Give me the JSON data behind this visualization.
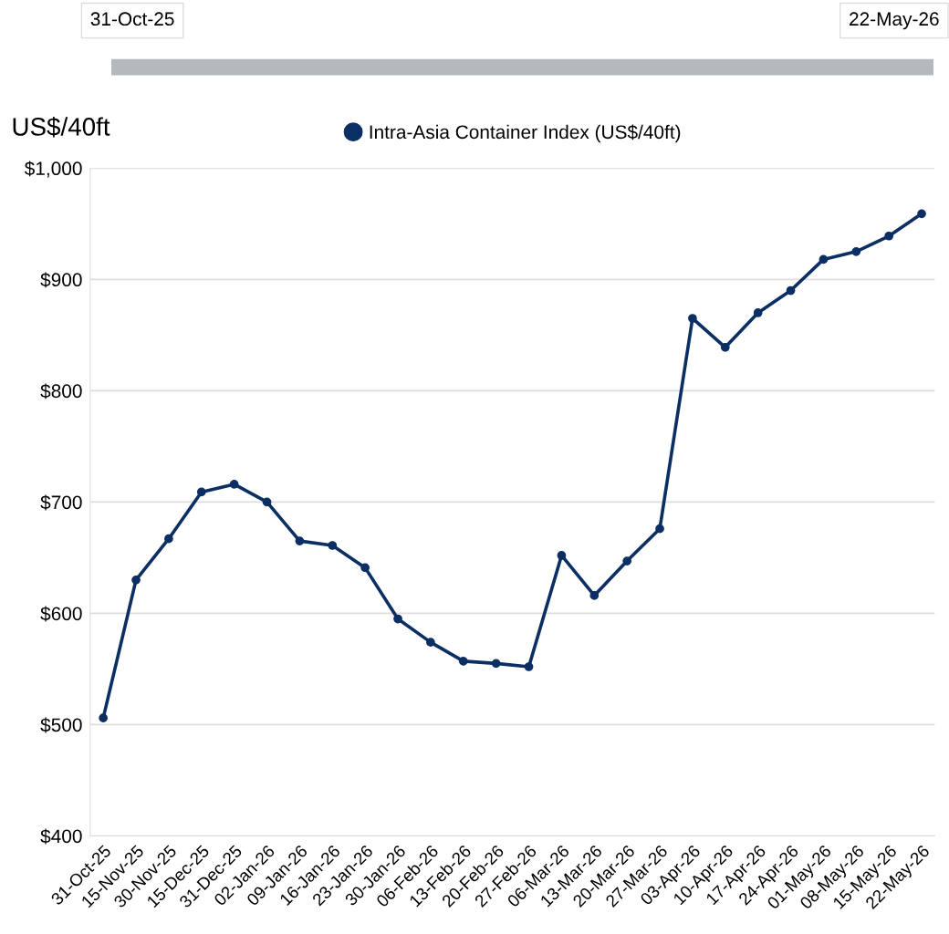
{
  "chart_data": {
    "type": "line",
    "ylabel": "US$/40ft",
    "categories": [
      "31-Oct-25",
      "15-Nov-25",
      "30-Nov-25",
      "15-Dec-25",
      "31-Dec-25",
      "02-Jan-26",
      "09-Jan-26",
      "16-Jan-26",
      "23-Jan-26",
      "30-Jan-26",
      "06-Feb-26",
      "13-Feb-26",
      "20-Feb-26",
      "27-Feb-26",
      "06-Mar-26",
      "13-Mar-26",
      "20-Mar-26",
      "27-Mar-26",
      "03-Apr-26",
      "10-Apr-26",
      "17-Apr-26",
      "24-Apr-26",
      "01-May-26",
      "08-May-26",
      "15-May-26",
      "22-May-26"
    ],
    "series": [
      {
        "name": "Intra-Asia Container Index (US$/40ft)",
        "color": "#0b2f63",
        "values": [
          506,
          630,
          667,
          709,
          716,
          700,
          665,
          661,
          641,
          595,
          574,
          557,
          555,
          552,
          652,
          616,
          647,
          676,
          865,
          839,
          870,
          890,
          918,
          925,
          939,
          959
        ]
      }
    ],
    "ylim": [
      400,
      1000
    ],
    "yticks": [
      {
        "value": 400,
        "label": "$400"
      },
      {
        "value": 500,
        "label": "$500"
      },
      {
        "value": 600,
        "label": "$600"
      },
      {
        "value": 700,
        "label": "$700"
      },
      {
        "value": 800,
        "label": "$800"
      },
      {
        "value": 900,
        "label": "$900"
      },
      {
        "value": 1000,
        "label": "$1,000"
      }
    ],
    "grid": "y",
    "legend": "top",
    "marker": "circle",
    "line_style": "solid",
    "annotations": [
      "31-Oct-25",
      "22-May-26"
    ]
  }
}
